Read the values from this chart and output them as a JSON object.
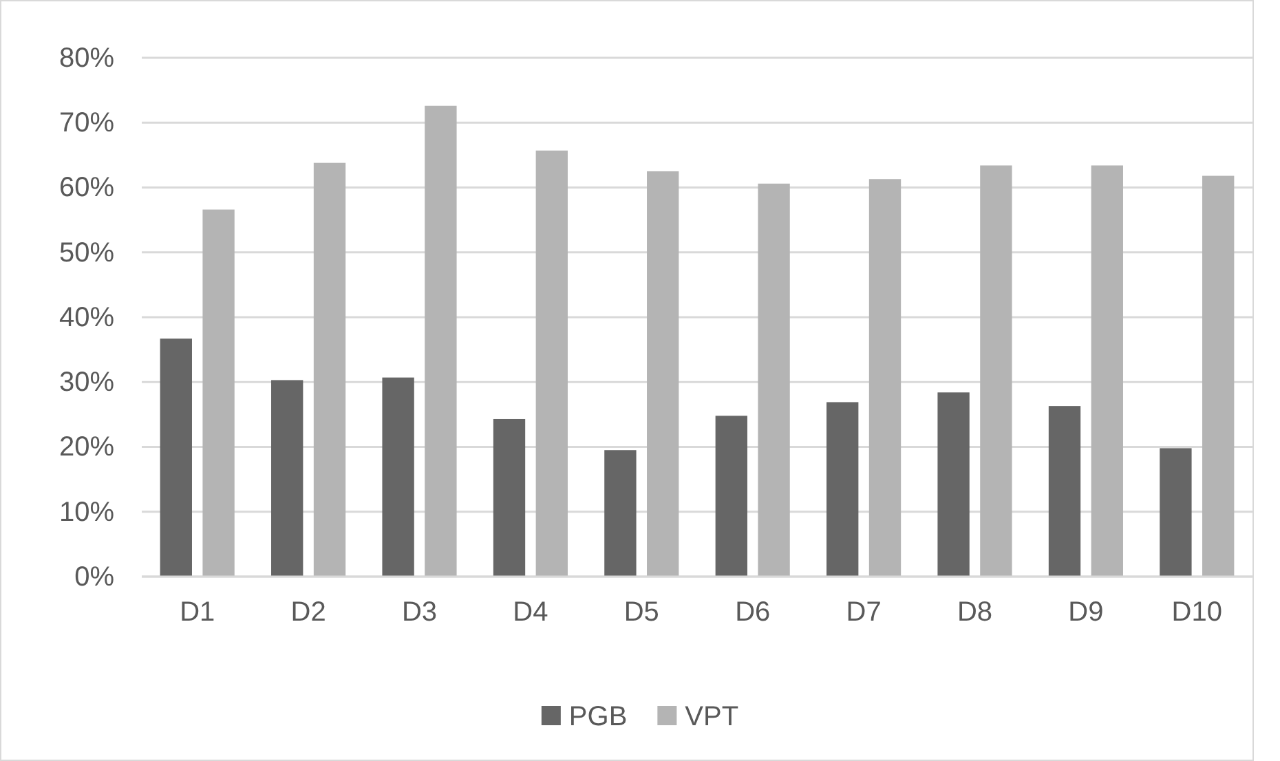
{
  "chart_data": {
    "type": "bar",
    "categories": [
      "D1",
      "D2",
      "D3",
      "D4",
      "D5",
      "D6",
      "D7",
      "D8",
      "D9",
      "D10"
    ],
    "series": [
      {
        "name": "PGB",
        "color": "#666666",
        "values": [
          36.7,
          30.3,
          30.7,
          24.3,
          19.5,
          24.8,
          26.9,
          28.4,
          26.3,
          19.8
        ]
      },
      {
        "name": "VPT",
        "color": "#b4b4b4",
        "values": [
          56.6,
          63.8,
          72.6,
          65.7,
          62.5,
          60.6,
          61.3,
          63.4,
          63.4,
          61.8
        ]
      }
    ],
    "ylim": [
      0,
      80
    ],
    "yticks": [
      {
        "value": 0,
        "label": "0%"
      },
      {
        "value": 10,
        "label": "10%"
      },
      {
        "value": 20,
        "label": "20%"
      },
      {
        "value": 30,
        "label": "30%"
      },
      {
        "value": 40,
        "label": "40%"
      },
      {
        "value": 50,
        "label": "50%"
      },
      {
        "value": 60,
        "label": "60%"
      },
      {
        "value": 70,
        "label": "70%"
      },
      {
        "value": 80,
        "label": "80%"
      }
    ],
    "grid": "y",
    "legend": "bottom"
  }
}
